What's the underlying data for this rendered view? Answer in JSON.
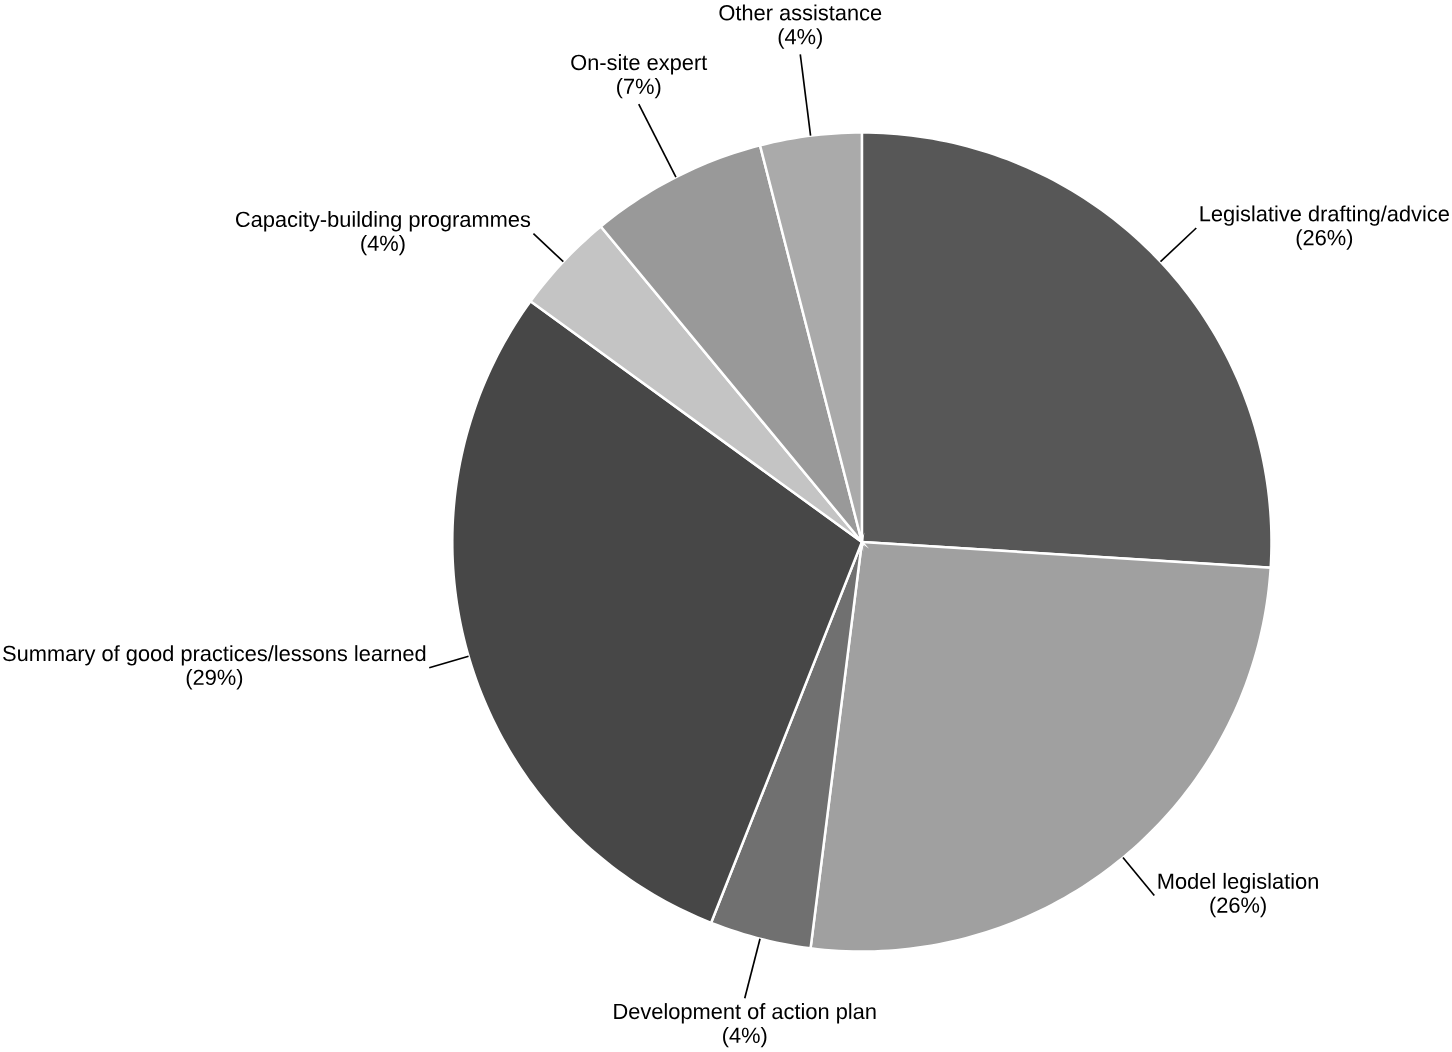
{
  "chart_data": {
    "type": "pie",
    "categories": [
      "Legislative drafting/advice",
      "Model legislation",
      "Development of action plan",
      "Summary of good practices/lessons learned",
      "Capacity-building programmes",
      "On-site expert",
      "Other assistance"
    ],
    "values": [
      26,
      26,
      4,
      29,
      4,
      7,
      4
    ],
    "value_labels": [
      "(26%)",
      "(26%)",
      "(4%)",
      "(29%)",
      "(4%)",
      "(7%)",
      "(4%)"
    ],
    "colors": [
      "#575757",
      "#a0a0a0",
      "#707070",
      "#474747",
      "#c4c4c4",
      "#999999",
      "#aaaaaa"
    ]
  }
}
